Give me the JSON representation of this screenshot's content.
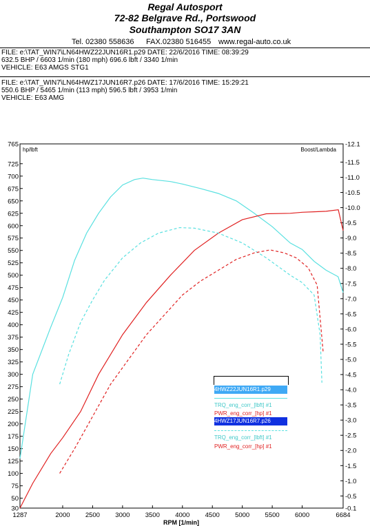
{
  "header": {
    "company": "Regal Autosport",
    "address1": "72-82 Belgrave Rd., Portswood",
    "address2": "Southampton SO17 3AN",
    "tel": "Tel. 02380 558636",
    "fax": "FAX.02380 516455",
    "web": "www.regal-auto.co.uk"
  },
  "runs": [
    {
      "file": "FILE: e:\\TAT_WIN7\\LN64HWZ22JUN16R1.p29  DATE: 22/6/2016  TIME: 08:39:29",
      "result": "632.5 BHP / 6603 1/min (180 mph)   696.6 lbft / 3340 1/min",
      "vehicle": "VEHICLE: E63 AMGS STG1"
    },
    {
      "file": "FILE: e:\\TAT_WIN7\\LN64HWZ17JUN16R7.p26  DATE: 17/6/2016  TIME: 15:29:21",
      "result": "550.6 BHP / 5465 1/min (113 mph)   596.5 lbft / 3953 1/min",
      "vehicle": "VEHICLE: E63 AMG"
    }
  ],
  "chart_data": {
    "type": "line",
    "xlabel": "RPM  [1/min]",
    "ylabel_left": "hp/lbft",
    "ylabel_right": "Boost/Lambda",
    "xlim": [
      1287,
      6684
    ],
    "ylim_left": [
      30,
      765
    ],
    "ylim_right": [
      -0.1,
      -12.1
    ],
    "x_ticks": [
      "1287",
      "2000",
      "2500",
      "3000",
      "3500",
      "4000",
      "4500",
      "5000",
      "5500",
      "6000",
      "6684"
    ],
    "y_left_ticks": [
      "765",
      "725",
      "700",
      "675",
      "650",
      "625",
      "600",
      "575",
      "550",
      "525",
      "500",
      "475",
      "450",
      "425",
      "400",
      "375",
      "350",
      "325",
      "300",
      "275",
      "250",
      "225",
      "200",
      "175",
      "150",
      "125",
      "100",
      "75",
      "50",
      "30"
    ],
    "y_right_ticks": [
      "-12.1",
      "-11.5",
      "-11.0",
      "-10.5",
      "-10.0",
      "-9.5",
      "-9.0",
      "-8.5",
      "-8.0",
      "-7.5",
      "-7.0",
      "-6.5",
      "-6.0",
      "-5.5",
      "-5.0",
      "-4.5",
      "-4.0",
      "-3.5",
      "-3.0",
      "-2.5",
      "-2.0",
      "-1.5",
      "-1.0",
      "-0.5",
      "-0.1"
    ],
    "grid": false,
    "legend_position": "bottom-center",
    "legend": {
      "run1": "4HWZ22JUN16R1.p29",
      "run1_trq": "TRQ_eng_corr_[lbft] #1",
      "run1_pwr": "PWR_eng_corr_[hp] #1",
      "run2": "4HWZ17JUN16R7.p26",
      "run2_trq": "TRQ_eng_corr_[lbft] #1",
      "run2_pwr": "PWR_eng_corr_[hp] #1"
    },
    "series": [
      {
        "run": "4HWZ22JUN16R1.p29",
        "quantity": "torque",
        "color": "#58e0e0",
        "dash": false,
        "x": [
          1287,
          1500,
          1800,
          2000,
          2200,
          2400,
          2600,
          2800,
          3000,
          3200,
          3340,
          3500,
          3800,
          4000,
          4300,
          4600,
          4900,
          5200,
          5500,
          5800,
          6000,
          6200,
          6400,
          6600,
          6684
        ],
        "y": [
          130,
          300,
          395,
          455,
          530,
          585,
          625,
          658,
          682,
          693,
          696,
          693,
          689,
          684,
          675,
          665,
          650,
          625,
          598,
          565,
          552,
          528,
          510,
          497,
          465
        ]
      },
      {
        "run": "4HWZ22JUN16R1.p29",
        "quantity": "power",
        "color": "#e02020",
        "dash": false,
        "x": [
          1287,
          1500,
          1800,
          2000,
          2300,
          2600,
          3000,
          3400,
          3800,
          4200,
          4600,
          5000,
          5400,
          5800,
          6000,
          6200,
          6400,
          6603,
          6684
        ],
        "y": [
          30,
          80,
          140,
          172,
          225,
          300,
          380,
          445,
          500,
          550,
          585,
          612,
          624,
          625,
          627,
          628,
          629,
          632,
          590
        ]
      },
      {
        "run": "4HWZ17JUN16R7.p26",
        "quantity": "torque",
        "color": "#58e0e0",
        "dash": true,
        "x": [
          1950,
          2100,
          2300,
          2500,
          2700,
          3000,
          3300,
          3600,
          3953,
          4200,
          4600,
          5000,
          5400,
          5800,
          6000,
          6200,
          6300,
          6330
        ],
        "y": [
          280,
          340,
          405,
          450,
          490,
          535,
          565,
          585,
          596,
          595,
          585,
          565,
          535,
          500,
          485,
          460,
          380,
          283
        ]
      },
      {
        "run": "4HWZ17JUN16R7.p26",
        "quantity": "power",
        "color": "#e02020",
        "dash": true,
        "x": [
          1950,
          2200,
          2500,
          2800,
          3100,
          3400,
          3700,
          4000,
          4300,
          4600,
          4900,
          5200,
          5465,
          5700,
          5900,
          6100,
          6250,
          6350
        ],
        "y": [
          100,
          150,
          215,
          280,
          330,
          380,
          420,
          460,
          488,
          510,
          532,
          545,
          551,
          545,
          535,
          515,
          480,
          345
        ]
      }
    ]
  }
}
